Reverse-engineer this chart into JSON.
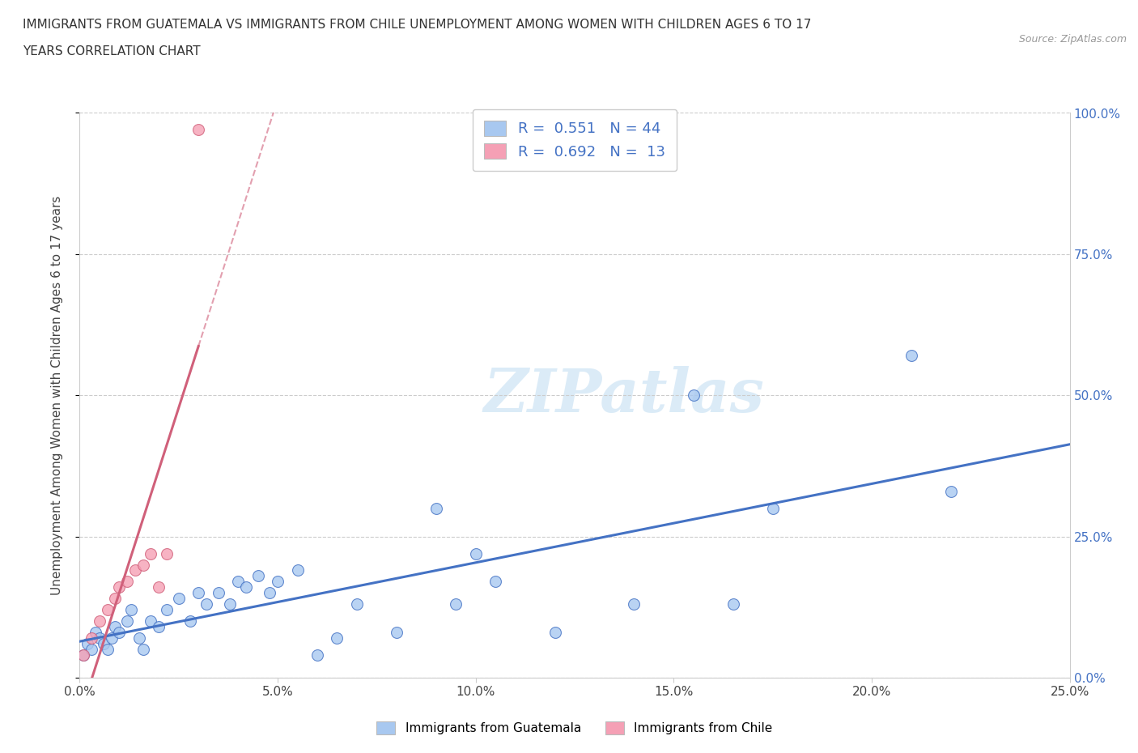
{
  "title_line1": "IMMIGRANTS FROM GUATEMALA VS IMMIGRANTS FROM CHILE UNEMPLOYMENT AMONG WOMEN WITH CHILDREN AGES 6 TO 17",
  "title_line2": "YEARS CORRELATION CHART",
  "source": "Source: ZipAtlas.com",
  "ylabel": "Unemployment Among Women with Children Ages 6 to 17 years",
  "watermark": "ZIPatlas",
  "legend_labels": [
    "Immigrants from Guatemala",
    "Immigrants from Chile"
  ],
  "R_guatemala": 0.551,
  "N_guatemala": 44,
  "R_chile": 0.692,
  "N_chile": 13,
  "color_guatemala": "#a8c8f0",
  "color_chile": "#f5a0b5",
  "trendline_color_guatemala": "#4472c4",
  "trendline_color_chile": "#d0607a",
  "xlim": [
    0.0,
    0.25
  ],
  "ylim": [
    0.0,
    1.0
  ],
  "xticks": [
    0.0,
    0.05,
    0.1,
    0.15,
    0.2,
    0.25
  ],
  "yticks": [
    0.0,
    0.25,
    0.5,
    0.75,
    1.0
  ],
  "xtick_labels": [
    "0.0%",
    "5.0%",
    "10.0%",
    "15.0%",
    "20.0%",
    "25.0%"
  ],
  "ytick_labels_right": [
    "0.0%",
    "25.0%",
    "50.0%",
    "75.0%",
    "100.0%"
  ],
  "guatemala_x": [
    0.001,
    0.002,
    0.003,
    0.004,
    0.005,
    0.006,
    0.007,
    0.008,
    0.009,
    0.01,
    0.012,
    0.013,
    0.015,
    0.016,
    0.018,
    0.02,
    0.022,
    0.025,
    0.028,
    0.03,
    0.032,
    0.035,
    0.038,
    0.04,
    0.042,
    0.045,
    0.048,
    0.05,
    0.055,
    0.06,
    0.065,
    0.07,
    0.08,
    0.09,
    0.095,
    0.1,
    0.105,
    0.12,
    0.14,
    0.155,
    0.165,
    0.175,
    0.21,
    0.22
  ],
  "guatemala_y": [
    0.04,
    0.06,
    0.05,
    0.08,
    0.07,
    0.06,
    0.05,
    0.07,
    0.09,
    0.08,
    0.1,
    0.12,
    0.07,
    0.05,
    0.1,
    0.09,
    0.12,
    0.14,
    0.1,
    0.15,
    0.13,
    0.15,
    0.13,
    0.17,
    0.16,
    0.18,
    0.15,
    0.17,
    0.19,
    0.04,
    0.07,
    0.13,
    0.08,
    0.3,
    0.13,
    0.22,
    0.17,
    0.08,
    0.13,
    0.5,
    0.13,
    0.3,
    0.57,
    0.33
  ],
  "chile_x": [
    0.001,
    0.003,
    0.005,
    0.007,
    0.009,
    0.01,
    0.012,
    0.014,
    0.016,
    0.018,
    0.02,
    0.022,
    0.03
  ],
  "chile_y": [
    0.04,
    0.07,
    0.1,
    0.12,
    0.14,
    0.16,
    0.17,
    0.19,
    0.2,
    0.22,
    0.16,
    0.22,
    0.97
  ],
  "chile_trendline_extend_to": 0.08,
  "chile_dashed_from": 0.03
}
